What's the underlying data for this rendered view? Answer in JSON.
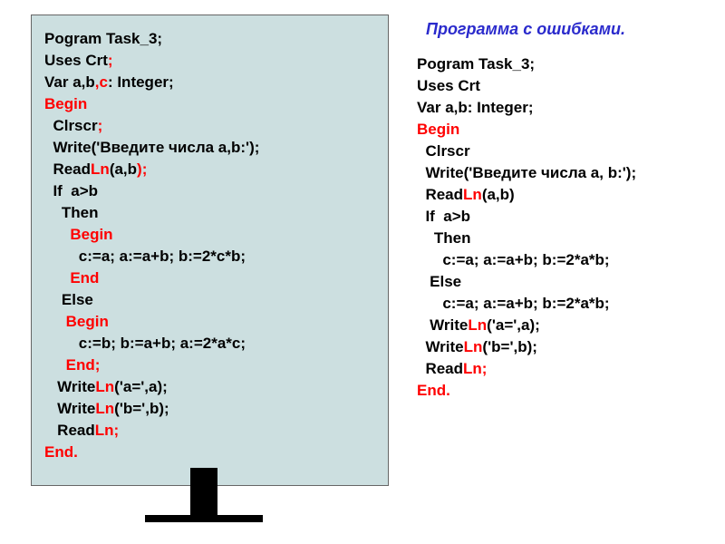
{
  "right_title": "Программа с ошибками.",
  "left": {
    "l1": "Pogram Task_3;",
    "l2a": "Uses Crt",
    "l2b": ";",
    "l3a": "Var a,b",
    "l3b": ",c",
    "l3c": ": Integer;",
    "l4": "Begin",
    "l5a": "  Clrscr",
    "l5b": ";",
    "l6": "  Write('Введите числа a,b:');",
    "l7a": "  Read",
    "l7b": "Ln",
    "l7c": "(a,b",
    "l7d": ");",
    "l8": "  If  a>b",
    "l9": "    Then",
    "l10": "      Begin",
    "l11": "        c:=a; a:=a+b; b:=2*c*b;",
    "l12": "      End",
    "l13": "    Else",
    "l14": "     Begin",
    "l15": "        c:=b; b:=a+b; a:=2*a*c;",
    "l16": "     End;",
    "l17a": "   Write",
    "l17b": "Ln",
    "l17c": "('a=',a);",
    "l18a": "   Write",
    "l18b": "Ln",
    "l18c": "('b=',b);",
    "l19a": "   Read",
    "l19b": "Ln;",
    "l20": "End."
  },
  "right": {
    "l1": "Pogram Task_3;",
    "l2": "Uses Crt",
    "l3": "Var a,b: Integer;",
    "l4": "Begin",
    "l5": "  Clrscr",
    "l6": "  Write('Введите числа a, b:');",
    "l7a": "  Read",
    "l7b": "Ln",
    "l7c": "(a,b)",
    "l8": "  If  a>b",
    "l9": "    Then",
    "l10": "      c:=a; a:=a+b; b:=2*a*b;",
    "l11": "   Else",
    "l12": "      c:=a; a:=a+b; b:=2*a*b;",
    "l13a": "   Write",
    "l13b": "Ln",
    "l13c": "('a=',a);",
    "l14a": "  Write",
    "l14b": "Ln",
    "l14c": "('b=',b);",
    "l15a": "  Read",
    "l15b": "Ln;",
    "l16": "End."
  },
  "colors": {
    "panel_bg": "#ccdfe0",
    "red": "#ff0000",
    "blue": "#0000cc",
    "black": "#000000"
  }
}
